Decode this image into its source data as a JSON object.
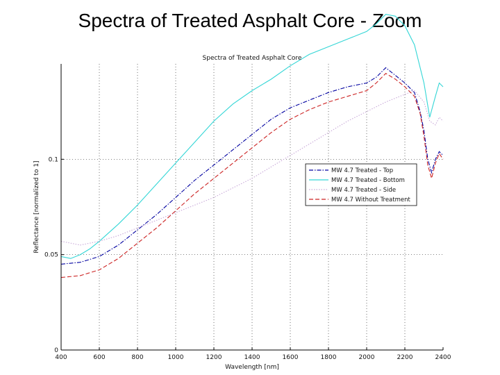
{
  "slide": {
    "title": "Spectra of Treated Asphalt Core - Zoom"
  },
  "chart_data": {
    "type": "line",
    "title": "Spectra of Treated Asphalt Core",
    "xlabel": "Wavelength [nm]",
    "ylabel": "Reflectance [normalized to 1]",
    "xlim": [
      400,
      2400
    ],
    "ylim": [
      0,
      0.15
    ],
    "xticks": [
      400,
      600,
      800,
      1000,
      1200,
      1400,
      1600,
      1800,
      2000,
      2200,
      2400
    ],
    "yticks": [
      0,
      0.05,
      0.1
    ],
    "ytick_labels": [
      "0",
      "0.05",
      "0.1"
    ],
    "grid": true,
    "legend_position": "right",
    "series": [
      {
        "name": "MW 4.7 Treated - Top",
        "color": "#0000a0",
        "style": "dash-dot",
        "x": [
          400,
          500,
          600,
          700,
          800,
          900,
          1000,
          1100,
          1200,
          1300,
          1400,
          1500,
          1600,
          1700,
          1800,
          1900,
          2000,
          2050,
          2100,
          2150,
          2200,
          2250,
          2280,
          2300,
          2320,
          2340,
          2360,
          2380,
          2400
        ],
        "values": [
          0.045,
          0.046,
          0.049,
          0.055,
          0.063,
          0.071,
          0.08,
          0.089,
          0.097,
          0.105,
          0.113,
          0.121,
          0.127,
          0.131,
          0.135,
          0.138,
          0.14,
          0.143,
          0.148,
          0.144,
          0.14,
          0.135,
          0.125,
          0.115,
          0.1,
          0.093,
          0.1,
          0.104,
          0.102
        ]
      },
      {
        "name": "MW 4.7 Treated - Bottom",
        "color": "#33d6d6",
        "style": "solid",
        "x": [
          400,
          450,
          500,
          550,
          600,
          700,
          800,
          900,
          1000,
          1100,
          1200,
          1300,
          1400,
          1500,
          1600,
          1700,
          1800,
          1900,
          2000,
          2050,
          2100,
          2150,
          2200,
          2250,
          2300,
          2330,
          2360,
          2380,
          2400
        ],
        "values": [
          0.049,
          0.048,
          0.05,
          0.053,
          0.057,
          0.066,
          0.076,
          0.087,
          0.098,
          0.109,
          0.12,
          0.129,
          0.136,
          0.142,
          0.149,
          0.155,
          0.159,
          0.163,
          0.167,
          0.171,
          0.176,
          0.175,
          0.17,
          0.16,
          0.14,
          0.122,
          0.133,
          0.14,
          0.138
        ]
      },
      {
        "name": "MW 4.7 Treated - Side",
        "color": "#c8a8d8",
        "style": "dotted",
        "x": [
          400,
          500,
          600,
          700,
          800,
          900,
          1000,
          1100,
          1200,
          1300,
          1400,
          1500,
          1600,
          1700,
          1800,
          1900,
          2000,
          2100,
          2200,
          2250,
          2300,
          2330,
          2360,
          2380,
          2400
        ],
        "values": [
          0.057,
          0.055,
          0.057,
          0.06,
          0.064,
          0.068,
          0.072,
          0.076,
          0.08,
          0.085,
          0.09,
          0.096,
          0.102,
          0.108,
          0.114,
          0.12,
          0.125,
          0.13,
          0.134,
          0.136,
          0.13,
          0.12,
          0.118,
          0.122,
          0.12
        ]
      },
      {
        "name": "MW 4.7 Without Treatment",
        "color": "#cc2222",
        "style": "dashed",
        "x": [
          400,
          500,
          600,
          700,
          800,
          900,
          1000,
          1100,
          1200,
          1300,
          1400,
          1500,
          1600,
          1700,
          1800,
          1900,
          2000,
          2050,
          2100,
          2150,
          2200,
          2250,
          2280,
          2300,
          2320,
          2340,
          2360,
          2380,
          2400
        ],
        "values": [
          0.038,
          0.039,
          0.042,
          0.048,
          0.056,
          0.064,
          0.073,
          0.082,
          0.09,
          0.098,
          0.106,
          0.114,
          0.121,
          0.126,
          0.13,
          0.133,
          0.136,
          0.14,
          0.145,
          0.142,
          0.138,
          0.133,
          0.124,
          0.112,
          0.097,
          0.09,
          0.098,
          0.103,
          0.1
        ]
      }
    ]
  }
}
